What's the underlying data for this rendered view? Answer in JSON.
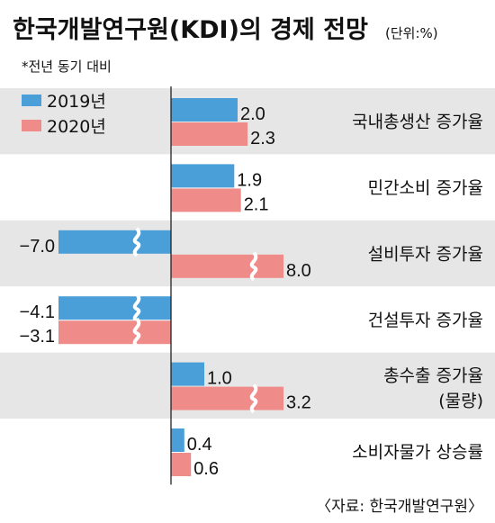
{
  "title": "한국개발연구원(KDI)의 경제 전망",
  "unit": "(단위:%)",
  "note": "*전년 동기 대비",
  "source": "〈자료: 한국개발연구원〉",
  "colors": {
    "y2019": "#4a9fd8",
    "y2020": "#ef8c8a",
    "band": "#e6e6e6"
  },
  "chart_data": {
    "type": "bar",
    "orientation": "horizontal",
    "categories": [
      [
        "국내총생산 증가율"
      ],
      [
        "민간소비 증가율"
      ],
      [
        "설비투자 증가율"
      ],
      [
        "건설투자 증가율"
      ],
      [
        "총수출 증가율",
        "(물량)"
      ],
      [
        "소비자물가 상승률"
      ]
    ],
    "series": [
      {
        "name": "2019년",
        "values": [
          2.0,
          1.9,
          -7.0,
          -4.1,
          1.0,
          0.4
        ],
        "labels": [
          "2.0",
          "1.9",
          "−7.0",
          "−4.1",
          "1.0",
          "0.4"
        ]
      },
      {
        "name": "2020년",
        "values": [
          2.3,
          2.1,
          8.0,
          -3.1,
          3.2,
          0.6
        ],
        "labels": [
          "2.3",
          "2.1",
          "8.0",
          "−3.1",
          "3.2",
          "0.6"
        ]
      }
    ],
    "axis_break": true
  }
}
